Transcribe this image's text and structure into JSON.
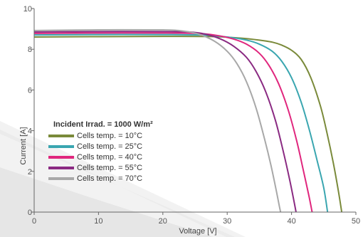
{
  "chart_data": {
    "type": "line",
    "xlabel": "Voltage [V]",
    "ylabel": "Current [A]",
    "xlim": [
      0,
      50
    ],
    "ylim": [
      0,
      10
    ],
    "xticks": [
      "0",
      "10",
      "20",
      "30",
      "40",
      "50"
    ],
    "yticks": [
      "0",
      "2",
      "4",
      "6",
      "8",
      "10"
    ],
    "grid": false,
    "legend_title": "Incident Irrad. = 1000 W/m²",
    "legend_position": "bottom-left",
    "series": [
      {
        "name": "Cells temp. = 10°C",
        "color": "#7a8a3a",
        "points": [
          [
            0,
            8.6
          ],
          [
            10,
            8.62
          ],
          [
            20,
            8.63
          ],
          [
            28,
            8.62
          ],
          [
            32,
            8.55
          ],
          [
            35,
            8.45
          ],
          [
            37,
            8.35
          ],
          [
            38.5,
            8.2
          ],
          [
            40,
            7.95
          ],
          [
            41.5,
            7.5
          ],
          [
            43,
            6.6
          ],
          [
            44.5,
            5.2
          ],
          [
            45.5,
            3.9
          ],
          [
            46.5,
            2.4
          ],
          [
            47.3,
            1.0
          ],
          [
            47.8,
            0
          ]
        ]
      },
      {
        "name": "Cells temp. = 25°C",
        "color": "#3aa6b0",
        "points": [
          [
            0,
            8.7
          ],
          [
            10,
            8.72
          ],
          [
            20,
            8.72
          ],
          [
            26,
            8.7
          ],
          [
            30,
            8.6
          ],
          [
            33,
            8.45
          ],
          [
            35,
            8.25
          ],
          [
            37,
            7.9
          ],
          [
            38.5,
            7.4
          ],
          [
            40,
            6.6
          ],
          [
            41.5,
            5.4
          ],
          [
            42.8,
            4.0
          ],
          [
            44,
            2.5
          ],
          [
            45,
            1.2
          ],
          [
            45.6,
            0
          ]
        ]
      },
      {
        "name": "Cells temp. = 40°C",
        "color": "#e0267d",
        "points": [
          [
            0,
            8.78
          ],
          [
            10,
            8.8
          ],
          [
            20,
            8.8
          ],
          [
            25,
            8.78
          ],
          [
            28,
            8.7
          ],
          [
            31,
            8.5
          ],
          [
            33,
            8.25
          ],
          [
            35,
            7.8
          ],
          [
            36.5,
            7.2
          ],
          [
            38,
            6.3
          ],
          [
            39.5,
            5.0
          ],
          [
            40.8,
            3.5
          ],
          [
            41.8,
            2.1
          ],
          [
            42.7,
            0.8
          ],
          [
            43.2,
            0
          ]
        ]
      },
      {
        "name": "Cells temp. = 55°C",
        "color": "#8a2a82",
        "points": [
          [
            0,
            8.85
          ],
          [
            10,
            8.87
          ],
          [
            20,
            8.87
          ],
          [
            24,
            8.85
          ],
          [
            26.5,
            8.75
          ],
          [
            29,
            8.5
          ],
          [
            31,
            8.15
          ],
          [
            33,
            7.6
          ],
          [
            34.5,
            6.9
          ],
          [
            36,
            5.9
          ],
          [
            37.5,
            4.5
          ],
          [
            38.7,
            3.0
          ],
          [
            39.7,
            1.6
          ],
          [
            40.4,
            0.5
          ],
          [
            40.7,
            0
          ]
        ]
      },
      {
        "name": "Cells temp. = 70°C",
        "color": "#a8a8a8",
        "points": [
          [
            0,
            8.92
          ],
          [
            10,
            8.95
          ],
          [
            20,
            8.95
          ],
          [
            23,
            8.9
          ],
          [
            25.5,
            8.75
          ],
          [
            28,
            8.4
          ],
          [
            30,
            7.9
          ],
          [
            31.5,
            7.3
          ],
          [
            33,
            6.4
          ],
          [
            34.5,
            5.1
          ],
          [
            35.8,
            3.6
          ],
          [
            36.8,
            2.3
          ],
          [
            37.6,
            1.1
          ],
          [
            38.1,
            0.3
          ],
          [
            38.3,
            0
          ]
        ]
      }
    ]
  }
}
